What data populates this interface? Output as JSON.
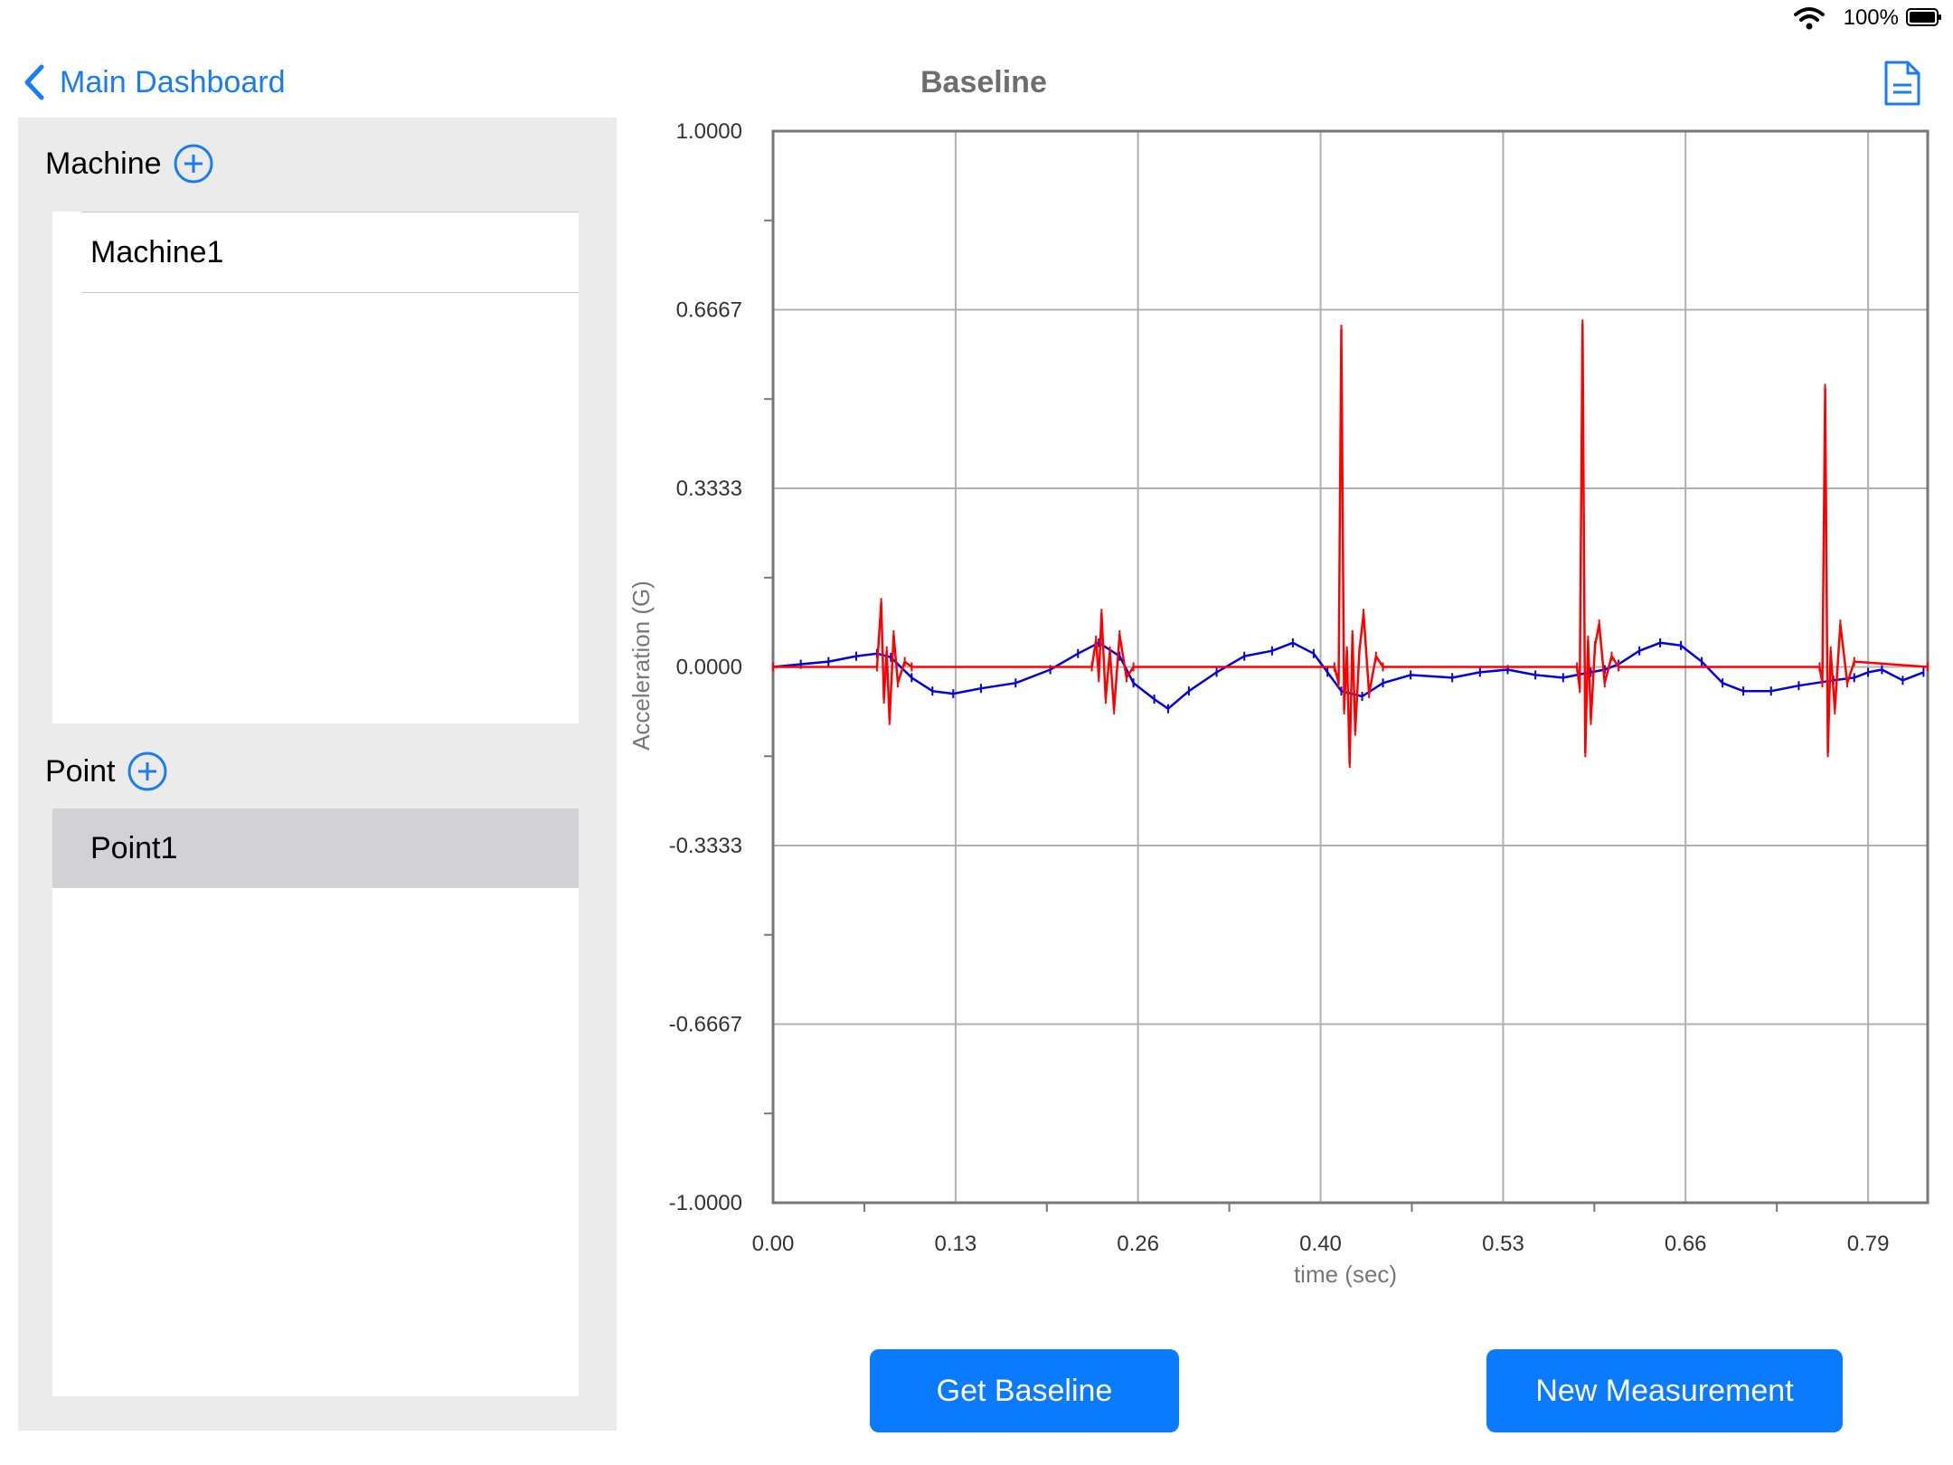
{
  "status_bar": {
    "battery_percent": "100%"
  },
  "nav": {
    "back_label": "Main Dashboard",
    "title": "Baseline"
  },
  "sidebar": {
    "machine_section": {
      "title": "Machine",
      "items": [
        "Machine1"
      ]
    },
    "point_section": {
      "title": "Point",
      "items": [
        "Point1"
      ],
      "selected_index": 0
    }
  },
  "actions": {
    "get_baseline_label": "Get Baseline",
    "new_measurement_label": "New Measurement"
  },
  "colors": {
    "accent": "#0a7aff",
    "series_red": "#ff0000",
    "series_blue": "#0000e6"
  },
  "icons": [
    "wifi-icon",
    "battery-icon",
    "chevron-left-icon",
    "plus-circle-icon",
    "document-icon"
  ],
  "chart_data": {
    "type": "line",
    "xlabel": "time (sec)",
    "ylabel": "Acceleration (G)",
    "xlim": [
      0,
      0.833
    ],
    "ylim": [
      -1.0,
      1.0
    ],
    "x_ticks": [
      "0.00",
      "0.13",
      "0.26",
      "0.40",
      "0.53",
      "0.66",
      "0.79"
    ],
    "x_tick_values": [
      0.0,
      0.1317,
      0.2633,
      0.395,
      0.5267,
      0.6583,
      0.79
    ],
    "y_ticks": [
      "1.0000",
      "0.6667",
      "0.3333",
      "0.0000",
      "-0.3333",
      "-0.6667",
      "-1.0000"
    ],
    "y_tick_values": [
      1.0,
      0.6667,
      0.3333,
      0.0,
      -0.3333,
      -0.6667,
      -1.0
    ],
    "grid": true,
    "series": [
      {
        "color": "#0000e6",
        "points": [
          [
            0.0,
            0.0
          ],
          [
            0.02,
            0.005
          ],
          [
            0.04,
            0.01
          ],
          [
            0.06,
            0.02
          ],
          [
            0.075,
            0.025
          ],
          [
            0.085,
            0.018
          ],
          [
            0.1,
            -0.02
          ],
          [
            0.115,
            -0.045
          ],
          [
            0.13,
            -0.05
          ],
          [
            0.15,
            -0.04
          ],
          [
            0.175,
            -0.03
          ],
          [
            0.2,
            -0.005
          ],
          [
            0.22,
            0.025
          ],
          [
            0.235,
            0.045
          ],
          [
            0.25,
            0.02
          ],
          [
            0.26,
            -0.03
          ],
          [
            0.275,
            -0.06
          ],
          [
            0.285,
            -0.078
          ],
          [
            0.3,
            -0.045
          ],
          [
            0.32,
            -0.01
          ],
          [
            0.34,
            0.02
          ],
          [
            0.36,
            0.03
          ],
          [
            0.375,
            0.045
          ],
          [
            0.39,
            0.025
          ],
          [
            0.4,
            -0.01
          ],
          [
            0.41,
            -0.045
          ],
          [
            0.425,
            -0.055
          ],
          [
            0.44,
            -0.03
          ],
          [
            0.46,
            -0.015
          ],
          [
            0.49,
            -0.02
          ],
          [
            0.51,
            -0.01
          ],
          [
            0.53,
            -0.005
          ],
          [
            0.55,
            -0.015
          ],
          [
            0.57,
            -0.02
          ],
          [
            0.59,
            -0.01
          ],
          [
            0.6,
            -0.005
          ],
          [
            0.61,
            0.005
          ],
          [
            0.625,
            0.03
          ],
          [
            0.64,
            0.045
          ],
          [
            0.655,
            0.04
          ],
          [
            0.67,
            0.01
          ],
          [
            0.685,
            -0.03
          ],
          [
            0.7,
            -0.045
          ],
          [
            0.72,
            -0.045
          ],
          [
            0.74,
            -0.035
          ],
          [
            0.765,
            -0.025
          ],
          [
            0.78,
            -0.02
          ],
          [
            0.79,
            -0.01
          ],
          [
            0.8,
            -0.005
          ],
          [
            0.815,
            -0.025
          ],
          [
            0.83,
            -0.01
          ]
        ]
      },
      {
        "color": "#ff0000",
        "points": [
          [
            0.0,
            0.0
          ],
          [
            0.075,
            0.0
          ],
          [
            0.078,
            0.12
          ],
          [
            0.08,
            -0.06
          ],
          [
            0.082,
            0.03
          ],
          [
            0.084,
            -0.1
          ],
          [
            0.087,
            0.06
          ],
          [
            0.09,
            -0.03
          ],
          [
            0.095,
            0.01
          ],
          [
            0.1,
            0.0
          ],
          [
            0.23,
            0.0
          ],
          [
            0.233,
            0.05
          ],
          [
            0.235,
            -0.02
          ],
          [
            0.237,
            0.1
          ],
          [
            0.24,
            -0.06
          ],
          [
            0.243,
            0.03
          ],
          [
            0.246,
            -0.08
          ],
          [
            0.25,
            0.06
          ],
          [
            0.255,
            -0.02
          ],
          [
            0.26,
            0.0
          ],
          [
            0.405,
            0.0
          ],
          [
            0.408,
            -0.03
          ],
          [
            0.41,
            0.63
          ],
          [
            0.412,
            -0.08
          ],
          [
            0.414,
            0.03
          ],
          [
            0.416,
            -0.18
          ],
          [
            0.418,
            0.06
          ],
          [
            0.42,
            -0.12
          ],
          [
            0.423,
            0.03
          ],
          [
            0.426,
            0.1
          ],
          [
            0.43,
            -0.05
          ],
          [
            0.435,
            0.02
          ],
          [
            0.44,
            0.0
          ],
          [
            0.58,
            0.0
          ],
          [
            0.582,
            -0.04
          ],
          [
            0.584,
            0.64
          ],
          [
            0.586,
            -0.16
          ],
          [
            0.588,
            0.05
          ],
          [
            0.59,
            -0.1
          ],
          [
            0.593,
            0.04
          ],
          [
            0.596,
            0.08
          ],
          [
            0.6,
            -0.03
          ],
          [
            0.605,
            0.02
          ],
          [
            0.61,
            0.0
          ],
          [
            0.755,
            0.0
          ],
          [
            0.757,
            -0.03
          ],
          [
            0.759,
            0.52
          ],
          [
            0.761,
            -0.16
          ],
          [
            0.763,
            0.03
          ],
          [
            0.766,
            -0.08
          ],
          [
            0.77,
            0.08
          ],
          [
            0.775,
            -0.03
          ],
          [
            0.78,
            0.01
          ],
          [
            0.833,
            0.0
          ]
        ]
      }
    ]
  }
}
